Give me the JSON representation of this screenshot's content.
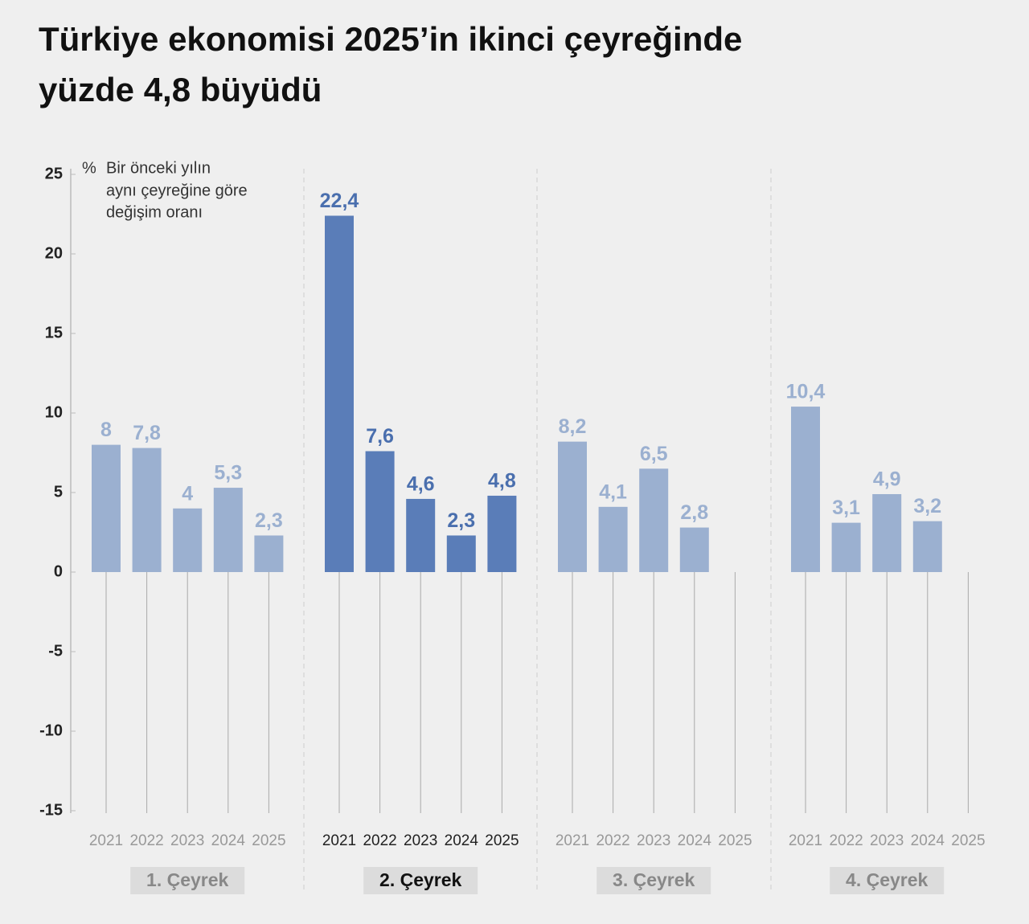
{
  "chart_data": {
    "type": "bar",
    "title": [
      "Türkiye ekonomisi 2025’in ikinci çeyreğinde",
      "yüzde 4,8 büyüdü"
    ],
    "unit": "%",
    "annotation": [
      "Bir önceki yılın",
      "aynı çeyreğine göre",
      "değişim oranı"
    ],
    "ylim": [
      -15,
      25
    ],
    "yticks": [
      -15,
      -10,
      -5,
      0,
      5,
      10,
      15,
      20,
      25
    ],
    "panels": [
      {
        "name": "1. Çeyrek",
        "highlight": false,
        "color": "#9bb0d0",
        "label_color": "#9bb0d0",
        "categories": [
          "2021",
          "2022",
          "2023",
          "2024",
          "2025"
        ],
        "values": [
          8,
          7.8,
          4,
          5.3,
          2.3
        ],
        "value_labels": [
          "8",
          "7,8",
          "4",
          "5,3",
          "2,3"
        ]
      },
      {
        "name": "2. Çeyrek",
        "highlight": true,
        "color": "#5a7db8",
        "label_color": "#4a6fae",
        "categories": [
          "2021",
          "2022",
          "2023",
          "2024",
          "2025"
        ],
        "values": [
          22.4,
          7.6,
          4.6,
          2.3,
          4.8
        ],
        "value_labels": [
          "22,4",
          "7,6",
          "4,6",
          "2,3",
          "4,8"
        ]
      },
      {
        "name": "3. Çeyrek",
        "highlight": false,
        "color": "#9bb0d0",
        "label_color": "#9bb0d0",
        "categories": [
          "2021",
          "2022",
          "2023",
          "2024",
          "2025"
        ],
        "values": [
          8.2,
          4.1,
          6.5,
          2.8,
          null
        ],
        "value_labels": [
          "8,2",
          "4,1",
          "6,5",
          "2,8",
          null
        ]
      },
      {
        "name": "4. Çeyrek",
        "highlight": false,
        "color": "#9bb0d0",
        "label_color": "#9bb0d0",
        "categories": [
          "2021",
          "2022",
          "2023",
          "2024",
          "2025"
        ],
        "values": [
          10.4,
          3.1,
          4.9,
          3.2,
          null
        ],
        "value_labels": [
          "10,4",
          "3,1",
          "4,9",
          "3,2",
          null
        ]
      }
    ]
  }
}
